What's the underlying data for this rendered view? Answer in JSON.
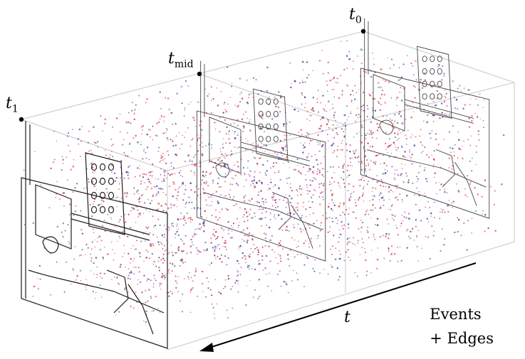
{
  "labels": {
    "t1": "t",
    "t1_sub": "1",
    "tmid": "t",
    "tmid_sub": "mid",
    "t0": "t",
    "t0_sub": "0",
    "time_axis": "t"
  },
  "legend": {
    "line1": "Events",
    "line2": "+ Edges"
  },
  "colors": {
    "event_positive": "#d7334f",
    "event_negative": "#3d3a9a",
    "edges": "#111111",
    "frame": "#bbbbbb"
  }
}
